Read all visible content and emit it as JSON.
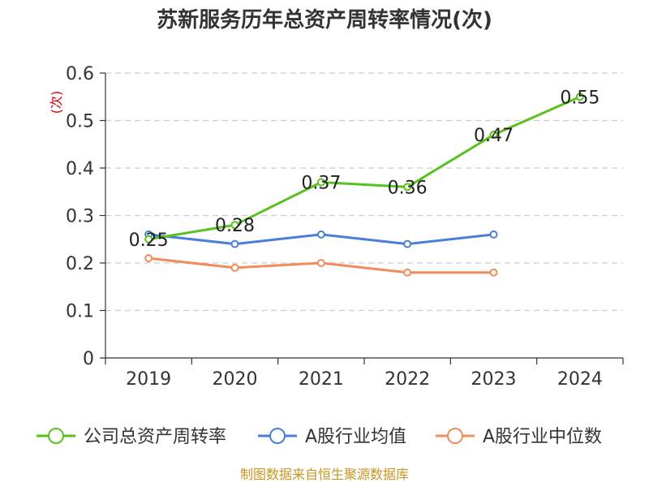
{
  "chart_data": {
    "type": "line",
    "title": "苏新服务历年总资产周转率情况(次)",
    "ylabel": "(次)",
    "categories": [
      "2019",
      "2020",
      "2021",
      "2022",
      "2023",
      "2024"
    ],
    "ylim": [
      0,
      0.6
    ],
    "yticks": [
      "0",
      "0.1",
      "0.2",
      "0.3",
      "0.4",
      "0.5",
      "0.6"
    ],
    "grid": true,
    "legend_position": "bottom",
    "series": [
      {
        "name": "公司总资产周转率",
        "color": "#5ac21e",
        "values": [
          0.25,
          0.28,
          0.37,
          0.36,
          0.47,
          0.55
        ],
        "labels": [
          "0.25",
          "0.28",
          "0.37",
          "0.36",
          "0.47",
          "0.55"
        ]
      },
      {
        "name": "A股行业均值",
        "color": "#4a7fd9",
        "values": [
          0.26,
          0.24,
          0.26,
          0.24,
          0.26,
          null
        ]
      },
      {
        "name": "A股行业中位数",
        "color": "#f28c5a",
        "values": [
          0.21,
          0.19,
          0.2,
          0.18,
          0.18,
          null
        ]
      }
    ],
    "source": "制图数据来自恒生聚源数据库"
  }
}
